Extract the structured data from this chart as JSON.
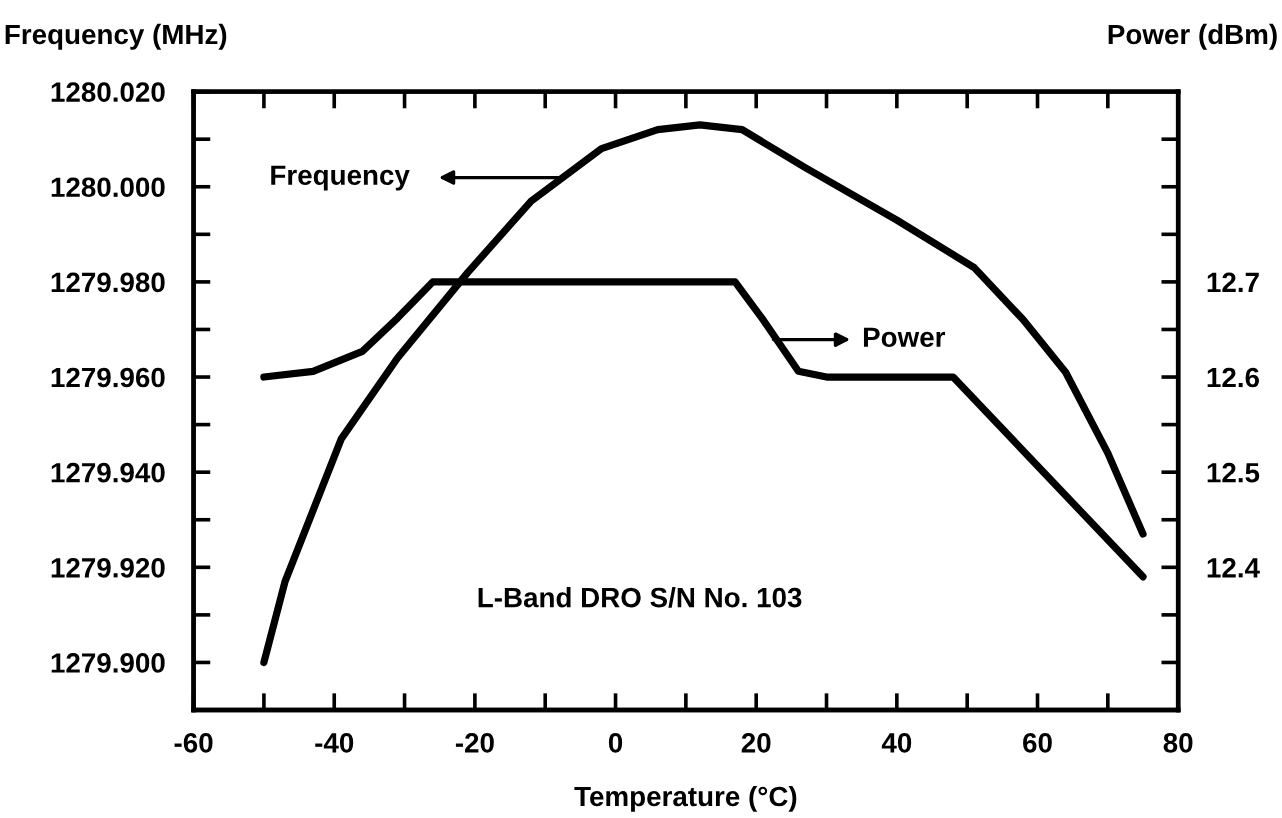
{
  "chart_data": {
    "type": "line",
    "xlabel": "Temperature (°C)",
    "ylabel": "Frequency (MHz)",
    "y2label": "Power (dBm)",
    "annotations": [
      "Frequency",
      "Power",
      "L-Band DRO S/N No. 103"
    ],
    "xlim": [
      -60,
      80
    ],
    "ylim": [
      1279.89,
      1280.02
    ],
    "y2lim": [
      12.25,
      12.9
    ],
    "xticks": [
      -60,
      {
        "value": -50,
        "label": null
      },
      -40,
      {
        "value": -30,
        "label": null
      },
      -20,
      {
        "value": -10,
        "label": null
      },
      0,
      {
        "value": 10,
        "label": null
      },
      20,
      {
        "value": 30,
        "label": null
      },
      40,
      {
        "value": 50,
        "label": null
      },
      60,
      {
        "value": 70,
        "label": null
      },
      80
    ],
    "yticks": [
      {
        "value": 1279.9,
        "label": "1279.900"
      },
      {
        "value": 1279.91,
        "label": null
      },
      {
        "value": 1279.92,
        "label": "1279.920"
      },
      {
        "value": 1279.93,
        "label": null
      },
      {
        "value": 1279.94,
        "label": "1279.940"
      },
      {
        "value": 1279.95,
        "label": null
      },
      {
        "value": 1279.96,
        "label": "1279.960"
      },
      {
        "value": 1279.97,
        "label": null
      },
      {
        "value": 1279.98,
        "label": "1279.980"
      },
      {
        "value": 1279.99,
        "label": null
      },
      {
        "value": 1280.0,
        "label": "1280.000"
      },
      {
        "value": 1280.01,
        "label": null
      },
      {
        "value": 1280.02,
        "label": "1280.020"
      }
    ],
    "y2ticks": [
      {
        "value": 12.3,
        "label": null
      },
      {
        "value": 12.35,
        "label": null
      },
      12.4,
      {
        "value": 12.45,
        "label": null
      },
      12.5,
      {
        "value": 12.55,
        "label": null
      },
      12.6,
      {
        "value": 12.65,
        "label": null
      },
      12.7,
      {
        "value": 12.75,
        "label": null
      },
      {
        "value": 12.8,
        "label": null
      },
      {
        "value": 12.85,
        "label": null
      }
    ],
    "grid": false,
    "marker": "none",
    "line_style": "solid",
    "series": [
      {
        "color": "#000000",
        "x": [
          -50,
          -47,
          -39,
          -31,
          -21,
          -12,
          -2,
          6,
          12,
          18,
          27,
          40,
          51,
          58,
          64,
          70,
          75
        ],
        "values": [
          1279.9,
          1279.917,
          1279.947,
          1279.964,
          1279.982,
          1279.997,
          1280.008,
          1280.012,
          1280.013,
          1280.012,
          1280.004,
          1279.993,
          1279.983,
          1279.972,
          1279.961,
          1279.944,
          1279.927
        ]
      },
      {
        "color": "#000000",
        "axis": "y2",
        "x": [
          -50,
          -43,
          -36,
          -31,
          -26,
          17,
          21,
          26,
          30,
          48,
          75
        ],
        "values": [
          12.6,
          12.606,
          12.627,
          12.662,
          12.7,
          12.7,
          12.66,
          12.606,
          12.6,
          12.6,
          12.39
        ]
      }
    ]
  }
}
